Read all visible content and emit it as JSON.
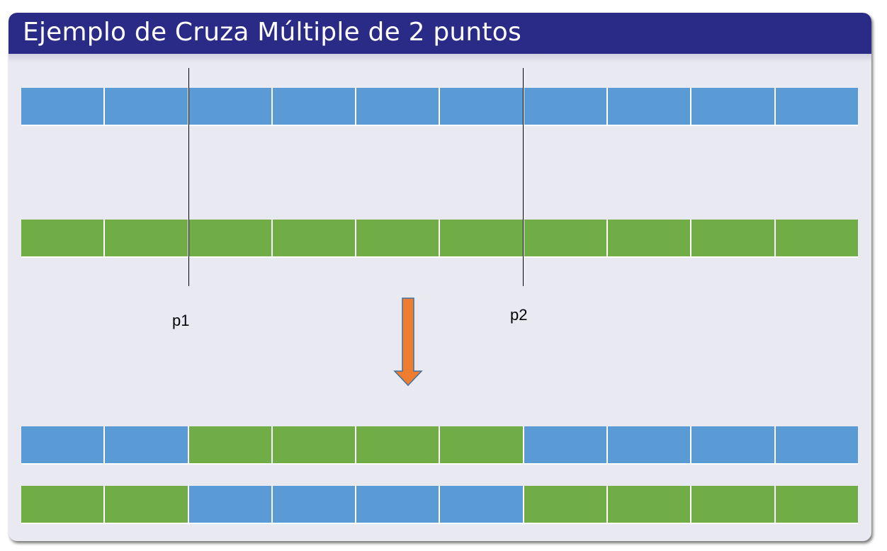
{
  "title": "Ejemplo de Cruza Múltiple de 2 puntos",
  "colors": {
    "parent_a": "#5b9bd5",
    "parent_b": "#70ad47",
    "arrow": "#ed7d31",
    "title_bar": "#2a2b86"
  },
  "cut_points": [
    {
      "label": "p1",
      "after_gene": 2
    },
    {
      "label": "p2",
      "after_gene": 6
    }
  ],
  "chromosomes": [
    {
      "role": "parent",
      "genes": [
        "A",
        "A",
        "A",
        "A",
        "A",
        "A",
        "A",
        "A",
        "A",
        "A"
      ]
    },
    {
      "role": "parent",
      "genes": [
        "B",
        "B",
        "B",
        "B",
        "B",
        "B",
        "B",
        "B",
        "B",
        "B"
      ]
    },
    {
      "role": "offspring",
      "genes": [
        "A",
        "A",
        "B",
        "B",
        "B",
        "B",
        "A",
        "A",
        "A",
        "A"
      ]
    },
    {
      "role": "offspring",
      "genes": [
        "B",
        "B",
        "A",
        "A",
        "A",
        "A",
        "B",
        "B",
        "B",
        "B"
      ]
    }
  ],
  "arrow_icon": "down-arrow-icon"
}
